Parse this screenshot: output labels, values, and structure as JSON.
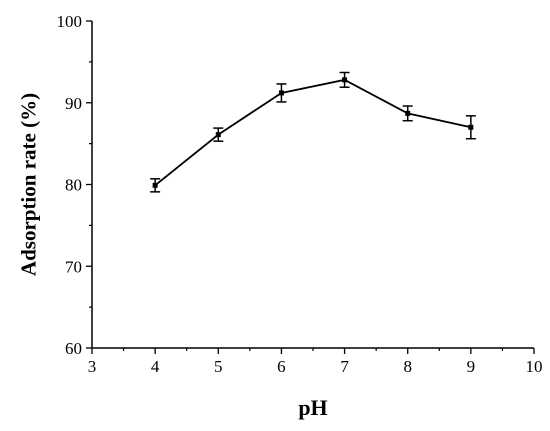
{
  "chart_data": {
    "type": "line",
    "xlabel": "pH",
    "ylabel": "Adsorption rate (%)",
    "xlim": [
      3,
      10
    ],
    "ylim": [
      60,
      100
    ],
    "x_ticks": [
      "3",
      "4",
      "5",
      "6",
      "7",
      "8",
      "9",
      "10"
    ],
    "y_ticks": [
      "60",
      "70",
      "80",
      "90",
      "100"
    ],
    "grid": false,
    "series": [
      {
        "x": [
          4,
          5,
          6,
          7,
          8,
          9
        ],
        "y": [
          79.9,
          86.1,
          91.2,
          92.8,
          88.7,
          87.0
        ],
        "error": [
          0.8,
          0.8,
          1.1,
          0.9,
          0.9,
          1.4
        ]
      }
    ],
    "colors": {
      "line": "#000000",
      "background": "#ffffff"
    }
  }
}
